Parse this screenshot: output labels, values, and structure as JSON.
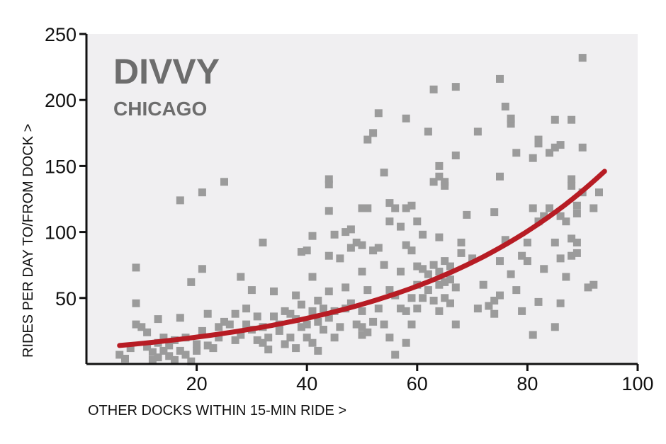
{
  "chart_data": {
    "type": "scatter",
    "title": "DIVVY",
    "subtitle": "CHICAGO",
    "xlabel": "OTHER DOCKS WITHIN 15-MIN RIDE >",
    "ylabel": "RIDES PER DAY TO/FROM DOCK >",
    "xlim": [
      0,
      100
    ],
    "ylim": [
      0,
      250
    ],
    "xticks": [
      20,
      40,
      60,
      80,
      100
    ],
    "yticks": [
      50,
      100,
      150,
      200,
      250
    ],
    "grid": false,
    "colors": {
      "background": "#f0eff1",
      "points": "#9b9b9b",
      "trend": "#b71c24",
      "axis": "#111111",
      "title": "#6d6d6d"
    },
    "points": [
      [
        6,
        7
      ],
      [
        7,
        4
      ],
      [
        8,
        12
      ],
      [
        9,
        73
      ],
      [
        9,
        46
      ],
      [
        9,
        30
      ],
      [
        10,
        28
      ],
      [
        11,
        24
      ],
      [
        11,
        13
      ],
      [
        12,
        3
      ],
      [
        12,
        9
      ],
      [
        13,
        16
      ],
      [
        13,
        34
      ],
      [
        13,
        5
      ],
      [
        14,
        20
      ],
      [
        14,
        10
      ],
      [
        15,
        6
      ],
      [
        15,
        14
      ],
      [
        16,
        18
      ],
      [
        16,
        3
      ],
      [
        17,
        124
      ],
      [
        17,
        35
      ],
      [
        17,
        10
      ],
      [
        18,
        20
      ],
      [
        18,
        7
      ],
      [
        19,
        62
      ],
      [
        19,
        2
      ],
      [
        20,
        15
      ],
      [
        20,
        10
      ],
      [
        21,
        130
      ],
      [
        21,
        72
      ],
      [
        21,
        25
      ],
      [
        22,
        38
      ],
      [
        22,
        14
      ],
      [
        23,
        12
      ],
      [
        24,
        28
      ],
      [
        24,
        20
      ],
      [
        25,
        138
      ],
      [
        25,
        32
      ],
      [
        26,
        30
      ],
      [
        27,
        38
      ],
      [
        27,
        18
      ],
      [
        28,
        66
      ],
      [
        28,
        22
      ],
      [
        29,
        42
      ],
      [
        29,
        30
      ],
      [
        30,
        56
      ],
      [
        30,
        26
      ],
      [
        31,
        18
      ],
      [
        31,
        36
      ],
      [
        32,
        92
      ],
      [
        32,
        28
      ],
      [
        32,
        16
      ],
      [
        33,
        11
      ],
      [
        33,
        20
      ],
      [
        34,
        55
      ],
      [
        34,
        36
      ],
      [
        35,
        30
      ],
      [
        35,
        25
      ],
      [
        36,
        40
      ],
      [
        36,
        15
      ],
      [
        37,
        38
      ],
      [
        37,
        20
      ],
      [
        38,
        52
      ],
      [
        38,
        34
      ],
      [
        38,
        12
      ],
      [
        39,
        85
      ],
      [
        39,
        45
      ],
      [
        39,
        28
      ],
      [
        40,
        86
      ],
      [
        40,
        30
      ],
      [
        40,
        20
      ],
      [
        41,
        97
      ],
      [
        41,
        66
      ],
      [
        41,
        40
      ],
      [
        41,
        16
      ],
      [
        42,
        48
      ],
      [
        42,
        32
      ],
      [
        42,
        10
      ],
      [
        43,
        42
      ],
      [
        43,
        26
      ],
      [
        44,
        140
      ],
      [
        44,
        136
      ],
      [
        44,
        116
      ],
      [
        44,
        82
      ],
      [
        44,
        55
      ],
      [
        44,
        35
      ],
      [
        45,
        98
      ],
      [
        45,
        40
      ],
      [
        45,
        20
      ],
      [
        46,
        80
      ],
      [
        46,
        28
      ],
      [
        47,
        100
      ],
      [
        47,
        58
      ],
      [
        47,
        42
      ],
      [
        48,
        102
      ],
      [
        48,
        88
      ],
      [
        48,
        46
      ],
      [
        49,
        92
      ],
      [
        49,
        30
      ],
      [
        50,
        118
      ],
      [
        50,
        90
      ],
      [
        50,
        70
      ],
      [
        50,
        40
      ],
      [
        50,
        28
      ],
      [
        50,
        22
      ],
      [
        51,
        170
      ],
      [
        51,
        118
      ],
      [
        51,
        56
      ],
      [
        51,
        24
      ],
      [
        52,
        175
      ],
      [
        52,
        86
      ],
      [
        52,
        32
      ],
      [
        53,
        190
      ],
      [
        53,
        88
      ],
      [
        53,
        42
      ],
      [
        54,
        145
      ],
      [
        54,
        75
      ],
      [
        54,
        30
      ],
      [
        55,
        122
      ],
      [
        55,
        108
      ],
      [
        55,
        56
      ],
      [
        55,
        20
      ],
      [
        56,
        118
      ],
      [
        56,
        52
      ],
      [
        56,
        7
      ],
      [
        57,
        104
      ],
      [
        57,
        70
      ],
      [
        57,
        42
      ],
      [
        58,
        186
      ],
      [
        58,
        118
      ],
      [
        58,
        90
      ],
      [
        58,
        40
      ],
      [
        58,
        16
      ],
      [
        59,
        120
      ],
      [
        59,
        86
      ],
      [
        59,
        50
      ],
      [
        59,
        30
      ],
      [
        60,
        108
      ],
      [
        60,
        74
      ],
      [
        60,
        60
      ],
      [
        60,
        42
      ],
      [
        61,
        98
      ],
      [
        61,
        72
      ],
      [
        61,
        50
      ],
      [
        62,
        176
      ],
      [
        62,
        68
      ],
      [
        62,
        56
      ],
      [
        63,
        208
      ],
      [
        63,
        138
      ],
      [
        63,
        75
      ],
      [
        63,
        48
      ],
      [
        64,
        150
      ],
      [
        64,
        142
      ],
      [
        64,
        96
      ],
      [
        64,
        70
      ],
      [
        64,
        60
      ],
      [
        64,
        40
      ],
      [
        65,
        138
      ],
      [
        65,
        135
      ],
      [
        65,
        78
      ],
      [
        65,
        62
      ],
      [
        65,
        50
      ],
      [
        66,
        74
      ],
      [
        66,
        64
      ],
      [
        66,
        46
      ],
      [
        67,
        210
      ],
      [
        67,
        158
      ],
      [
        67,
        58
      ],
      [
        67,
        30
      ],
      [
        68,
        92
      ],
      [
        68,
        84
      ],
      [
        69,
        113
      ],
      [
        70,
        80
      ],
      [
        71,
        176
      ],
      [
        71,
        42
      ],
      [
        72,
        60
      ],
      [
        73,
        44
      ],
      [
        74,
        115
      ],
      [
        74,
        48
      ],
      [
        74,
        38
      ],
      [
        75,
        216
      ],
      [
        75,
        142
      ],
      [
        75,
        78
      ],
      [
        75,
        52
      ],
      [
        76,
        195
      ],
      [
        76,
        94
      ],
      [
        77,
        182
      ],
      [
        77,
        186
      ],
      [
        77,
        68
      ],
      [
        78,
        160
      ],
      [
        78,
        56
      ],
      [
        79,
        82
      ],
      [
        79,
        40
      ],
      [
        80,
        92
      ],
      [
        80,
        78
      ],
      [
        81,
        156
      ],
      [
        81,
        118
      ],
      [
        81,
        22
      ],
      [
        82,
        167
      ],
      [
        82,
        170
      ],
      [
        82,
        108
      ],
      [
        82,
        47
      ],
      [
        83,
        112
      ],
      [
        83,
        72
      ],
      [
        84,
        160
      ],
      [
        84,
        118
      ],
      [
        85,
        185
      ],
      [
        85,
        164
      ],
      [
        85,
        92
      ],
      [
        85,
        28
      ],
      [
        86,
        166
      ],
      [
        86,
        112
      ],
      [
        86,
        80
      ],
      [
        86,
        46
      ],
      [
        87,
        108
      ],
      [
        87,
        66
      ],
      [
        88,
        185
      ],
      [
        88,
        140
      ],
      [
        88,
        135
      ],
      [
        88,
        95
      ],
      [
        88,
        82
      ],
      [
        89,
        120
      ],
      [
        89,
        114
      ],
      [
        89,
        92
      ],
      [
        89,
        84
      ],
      [
        90,
        232
      ],
      [
        90,
        164
      ],
      [
        90,
        130
      ],
      [
        91,
        58
      ],
      [
        92,
        118
      ],
      [
        92,
        60
      ],
      [
        93,
        130
      ]
    ],
    "trend_line": {
      "x_start": 6,
      "y_start": 14,
      "x_end": 94,
      "y_end": 146
    }
  }
}
